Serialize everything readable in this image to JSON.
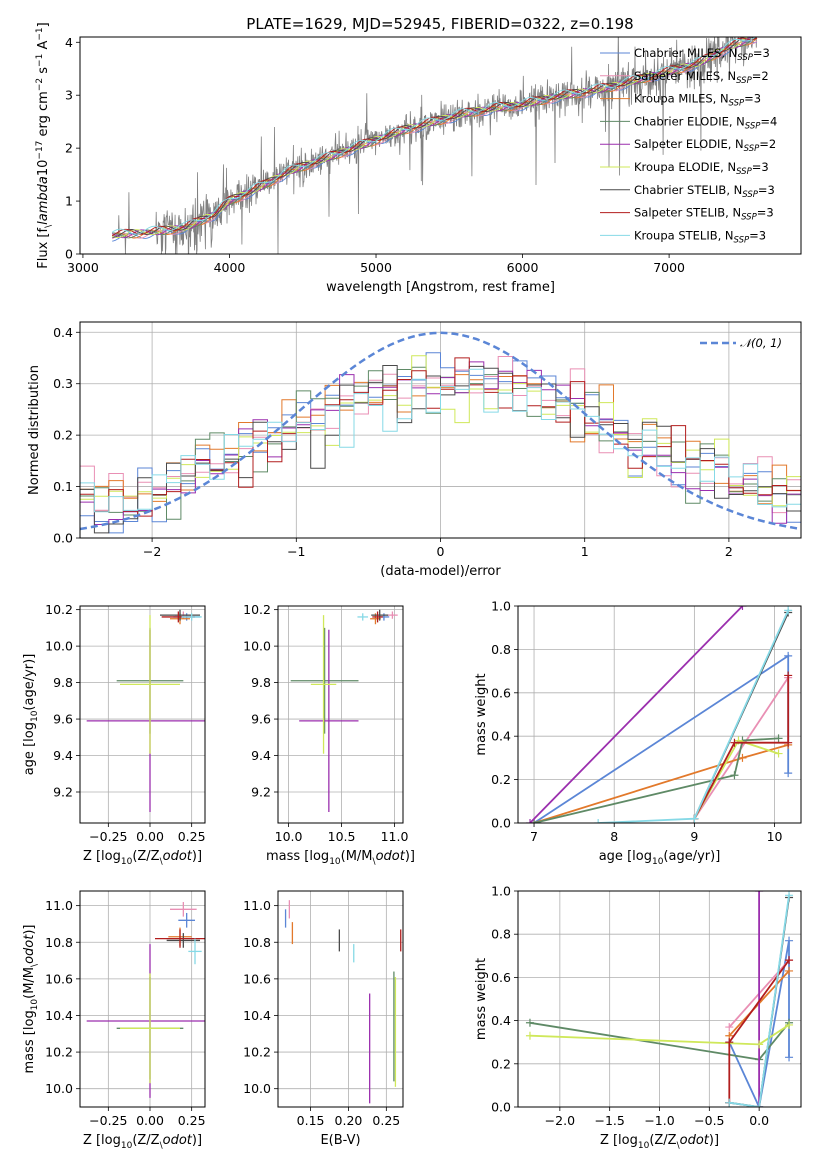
{
  "figure": {
    "title": "PLATE=1629, MJD=52945, FIBERID=0322, z=0.198"
  },
  "colors": {
    "Chabrier MILES": "#5b86d6",
    "Salpeter MILES": "#e98fb4",
    "Kroupa MILES": "#e2792b",
    "Chabrier ELODIE": "#5f8a66",
    "Salpeter ELODIE": "#9b2fae",
    "Kroupa ELODIE": "#cfe85a",
    "Chabrier STELIB": "#4a4a4a",
    "Salpeter STELIB": "#b21e1e",
    "Kroupa STELIB": "#86d9e6",
    "data": "#808080",
    "normal": "#5b86d6"
  },
  "chart_data": [
    {
      "id": "spectrum",
      "type": "line",
      "xlabel": "wavelength [Angstrom, rest frame]",
      "ylabel": "Flux [f$_\\lambda$10$^{-17}$ erg cm$^{-2}$ s$^{-1}$ A$^{-1}$]",
      "ylabel_parts": [
        "Flux [f",
        "λ",
        "10",
        "−17",
        " erg cm",
        "−2",
        " s",
        "−1",
        " A",
        "−1",
        "]"
      ],
      "xlim": [
        2980,
        7900
      ],
      "ylim": [
        0,
        4.1
      ],
      "xticks": [
        3000,
        4000,
        5000,
        6000,
        7000
      ],
      "yticks": [
        0,
        1,
        2,
        3,
        4
      ],
      "grid": false,
      "legend_position": "top-right",
      "legend": [
        {
          "label": "Chabrier MILES, N",
          "sub": "SSP",
          "suffix": "=3"
        },
        {
          "label": "Salpeter MILES, N",
          "sub": "SSP",
          "suffix": "=2"
        },
        {
          "label": "Kroupa MILES, N",
          "sub": "SSP",
          "suffix": "=3"
        },
        {
          "label": "Chabrier ELODIE, N",
          "sub": "SSP",
          "suffix": "=4"
        },
        {
          "label": "Salpeter ELODIE, N",
          "sub": "SSP",
          "suffix": "=2"
        },
        {
          "label": "Kroupa ELODIE, N",
          "sub": "SSP",
          "suffix": "=3"
        },
        {
          "label": "Chabrier STELIB, N",
          "sub": "SSP",
          "suffix": "=3"
        },
        {
          "label": "Salpeter STELIB, N",
          "sub": "SSP",
          "suffix": "=3"
        },
        {
          "label": "Kroupa STELIB, N",
          "sub": "SSP",
          "suffix": "=3"
        }
      ],
      "model_continuum": {
        "x": [
          3200,
          3500,
          3700,
          3900,
          4000,
          4200,
          4400,
          4600,
          4800,
          5000,
          5200,
          5400,
          5600,
          5800,
          6000,
          6200,
          6400,
          6600,
          6800,
          7000,
          7200,
          7400,
          7600
        ],
        "y": [
          0.35,
          0.42,
          0.5,
          0.75,
          1.0,
          1.25,
          1.55,
          1.75,
          1.95,
          2.15,
          2.35,
          2.5,
          2.65,
          2.75,
          2.82,
          2.95,
          3.05,
          3.15,
          3.3,
          3.45,
          3.6,
          3.9,
          4.1
        ]
      },
      "data_spectrum_note": "observed spectrum: noisy grey line following the model continuum"
    },
    {
      "id": "residual-hist",
      "type": "line",
      "xlabel": "(data-model)/error",
      "ylabel": "Normed distribution",
      "xlim": [
        -2.5,
        2.5
      ],
      "ylim": [
        0,
        0.42
      ],
      "xticks": [
        -2,
        -1,
        0,
        1,
        2
      ],
      "yticks": [
        0.0,
        0.1,
        0.2,
        0.3,
        0.4
      ],
      "grid": true,
      "legend_position": "top-right",
      "legend": [
        {
          "label": "𝒩(0, 1)"
        }
      ],
      "normal_curve": {
        "mean": 0,
        "sigma": 1
      },
      "histogram_bin_width": 0.1,
      "histogram_envelope": {
        "x": [
          -2.5,
          -2.0,
          -1.5,
          -1.0,
          -0.5,
          0.0,
          0.5,
          1.0,
          1.5,
          2.0,
          2.5
        ],
        "y": [
          0.05,
          0.09,
          0.15,
          0.22,
          0.27,
          0.3,
          0.29,
          0.24,
          0.17,
          0.12,
          0.07
        ]
      }
    },
    {
      "id": "age-vs-z",
      "type": "scatter",
      "xlabel": "Z [log$_{10}$(Z/Z$_\\odot$)]",
      "ylabel": "age  [log$_{10}$(age/yr)]",
      "xlim": [
        -0.42,
        0.33
      ],
      "ylim": [
        9.03,
        10.22
      ],
      "xticks": [
        -0.25,
        0.0,
        0.25
      ],
      "xtick_labels": [
        "−0.25",
        "0.00",
        "0.25"
      ],
      "yticks": [
        9.2,
        9.4,
        9.6,
        9.8,
        10.0,
        10.2
      ],
      "grid": true,
      "points": [
        {
          "series": "Chabrier MILES",
          "x": 0.22,
          "y": 10.16,
          "xerr": 0.08,
          "yerr": 0.02
        },
        {
          "series": "Salpeter MILES",
          "x": 0.2,
          "y": 10.17,
          "xerr": 0.05,
          "yerr": 0.02
        },
        {
          "series": "Kroupa MILES",
          "x": 0.18,
          "y": 10.15,
          "xerr": 0.06,
          "yerr": 0.03
        },
        {
          "series": "Chabrier ELODIE",
          "x": 0.0,
          "y": 9.81,
          "xerr": 0.2,
          "yerr": 0.29
        },
        {
          "series": "Salpeter ELODIE",
          "x": 0.0,
          "y": 9.59,
          "xerr": 0.38,
          "yerr": 0.5
        },
        {
          "series": "Kroupa ELODIE",
          "x": 0.0,
          "y": 9.79,
          "xerr": 0.18,
          "yerr": 0.38
        },
        {
          "series": "Chabrier STELIB",
          "x": 0.18,
          "y": 10.17,
          "xerr": 0.12,
          "yerr": 0.03
        },
        {
          "series": "Salpeter STELIB",
          "x": 0.17,
          "y": 10.16,
          "xerr": 0.1,
          "yerr": 0.03
        },
        {
          "series": "Kroupa STELIB",
          "x": 0.25,
          "y": 10.16,
          "xerr": 0.06,
          "yerr": 0.02
        }
      ]
    },
    {
      "id": "age-vs-mass",
      "type": "scatter",
      "xlabel": "mass [log$_{10}$(M/M$_\\odot$)]",
      "ylabel": "",
      "xlim": [
        9.9,
        11.08
      ],
      "ylim": [
        9.03,
        10.22
      ],
      "xticks": [
        10.0,
        10.5,
        11.0
      ],
      "yticks": [
        9.2,
        9.4,
        9.6,
        9.8,
        10.0,
        10.2
      ],
      "grid": true,
      "points": [
        {
          "series": "Chabrier MILES",
          "x": 10.9,
          "y": 10.16,
          "xerr": 0.05,
          "yerr": 0.02
        },
        {
          "series": "Salpeter MILES",
          "x": 10.98,
          "y": 10.17,
          "xerr": 0.05,
          "yerr": 0.02
        },
        {
          "series": "Kroupa MILES",
          "x": 10.82,
          "y": 10.15,
          "xerr": 0.05,
          "yerr": 0.03
        },
        {
          "series": "Chabrier ELODIE",
          "x": 10.34,
          "y": 9.81,
          "xerr": 0.32,
          "yerr": 0.29
        },
        {
          "series": "Salpeter ELODIE",
          "x": 10.38,
          "y": 9.59,
          "xerr": 0.28,
          "yerr": 0.5
        },
        {
          "series": "Kroupa ELODIE",
          "x": 10.33,
          "y": 9.79,
          "xerr": 0.12,
          "yerr": 0.38
        },
        {
          "series": "Chabrier STELIB",
          "x": 10.86,
          "y": 10.17,
          "xerr": 0.08,
          "yerr": 0.03
        },
        {
          "series": "Salpeter STELIB",
          "x": 10.84,
          "y": 10.16,
          "xerr": 0.05,
          "yerr": 0.03
        },
        {
          "series": "Kroupa STELIB",
          "x": 10.7,
          "y": 10.16,
          "xerr": 0.05,
          "yerr": 0.02
        }
      ]
    },
    {
      "id": "weight-vs-age",
      "type": "line",
      "xlabel": "age  [log$_{10}$(age/yr)]",
      "ylabel": "mass weight",
      "xlim": [
        6.8,
        10.33
      ],
      "ylim": [
        0,
        1
      ],
      "xticks": [
        7,
        8,
        9,
        10
      ],
      "yticks": [
        0.0,
        0.2,
        0.4,
        0.6,
        0.8,
        1.0
      ],
      "grid": true,
      "series": [
        {
          "name": "Chabrier MILES",
          "x": [
            7.0,
            10.17,
            10.17
          ],
          "y": [
            0.0,
            0.77,
            0.23
          ]
        },
        {
          "name": "Salpeter MILES",
          "x": [
            9.0,
            10.17
          ],
          "y": [
            0.02,
            0.67
          ]
        },
        {
          "name": "Kroupa MILES",
          "x": [
            7.0,
            9.6,
            10.17
          ],
          "y": [
            0.0,
            0.3,
            0.36
          ]
        },
        {
          "name": "Chabrier ELODIE",
          "x": [
            7.0,
            9.5,
            9.6,
            10.05
          ],
          "y": [
            0.0,
            0.22,
            0.38,
            0.39
          ]
        },
        {
          "name": "Salpeter ELODIE",
          "x": [
            6.95,
            9.6
          ],
          "y": [
            0.0,
            1.0
          ]
        },
        {
          "name": "Kroupa ELODIE",
          "x": [
            9.0,
            9.55,
            10.05
          ],
          "y": [
            0.02,
            0.38,
            0.32
          ]
        },
        {
          "name": "Chabrier STELIB",
          "x": [
            9.0,
            10.17
          ],
          "y": [
            0.02,
            0.97
          ]
        },
        {
          "name": "Salpeter STELIB",
          "x": [
            9.0,
            9.5,
            10.17,
            10.17
          ],
          "y": [
            0.02,
            0.37,
            0.37,
            0.68
          ]
        },
        {
          "name": "Kroupa STELIB",
          "x": [
            7.8,
            9.0,
            10.17
          ],
          "y": [
            0.0,
            0.02,
            0.98
          ]
        }
      ]
    },
    {
      "id": "mass-vs-z",
      "type": "scatter",
      "xlabel": "Z [log$_{10}$(Z/Z$_\\odot$)]",
      "ylabel": "mass [log$_{10}$(M/M$_\\odot$)]",
      "xlim": [
        -0.42,
        0.33
      ],
      "ylim": [
        9.9,
        11.08
      ],
      "xticks": [
        -0.25,
        0.0,
        0.25
      ],
      "xtick_labels": [
        "−0.25",
        "0.00",
        "0.25"
      ],
      "yticks": [
        10.0,
        10.2,
        10.4,
        10.6,
        10.8,
        11.0
      ],
      "grid": true,
      "points": [
        {
          "series": "Chabrier MILES",
          "x": 0.22,
          "y": 10.92,
          "xerr": 0.05,
          "yerr": 0.04
        },
        {
          "series": "Salpeter MILES",
          "x": 0.2,
          "y": 10.98,
          "xerr": 0.08,
          "yerr": 0.04
        },
        {
          "series": "Kroupa MILES",
          "x": 0.18,
          "y": 10.83,
          "xerr": 0.07,
          "yerr": 0.05
        },
        {
          "series": "Chabrier ELODIE",
          "x": 0.0,
          "y": 10.33,
          "xerr": 0.2,
          "yerr": 0.28
        },
        {
          "series": "Salpeter ELODIE",
          "x": 0.0,
          "y": 10.37,
          "xerr": 0.38,
          "yerr": 0.42
        },
        {
          "series": "Kroupa ELODIE",
          "x": 0.0,
          "y": 10.33,
          "xerr": 0.18,
          "yerr": 0.3
        },
        {
          "series": "Chabrier STELIB",
          "x": 0.2,
          "y": 10.81,
          "xerr": 0.1,
          "yerr": 0.04
        },
        {
          "series": "Salpeter STELIB",
          "x": 0.18,
          "y": 10.82,
          "xerr": 0.15,
          "yerr": 0.05
        },
        {
          "series": "Kroupa STELIB",
          "x": 0.27,
          "y": 10.75,
          "xerr": 0.04,
          "yerr": 0.07
        }
      ]
    },
    {
      "id": "mass-vs-ebv",
      "type": "scatter",
      "xlabel": "E(B-V)",
      "ylabel": "",
      "xlim": [
        0.107,
        0.272
      ],
      "ylim": [
        9.9,
        11.08
      ],
      "xticks": [
        0.15,
        0.2,
        0.25
      ],
      "xtick_labels": [
        "0.15",
        "0.20",
        "0.25"
      ],
      "yticks": [
        10.0,
        10.2,
        10.4,
        10.6,
        10.8,
        11.0
      ],
      "grid": true,
      "points": [
        {
          "series": "Chabrier MILES",
          "x": 0.117,
          "y": 10.93,
          "xerr": 0,
          "yerr": 0.05
        },
        {
          "series": "Salpeter MILES",
          "x": 0.122,
          "y": 10.98,
          "xerr": 0,
          "yerr": 0.05
        },
        {
          "series": "Kroupa MILES",
          "x": 0.126,
          "y": 10.85,
          "xerr": 0,
          "yerr": 0.06
        },
        {
          "series": "Chabrier ELODIE",
          "x": 0.26,
          "y": 10.34,
          "xerr": 0,
          "yerr": 0.3
        },
        {
          "series": "Salpeter ELODIE",
          "x": 0.228,
          "y": 10.22,
          "xerr": 0,
          "yerr": 0.3
        },
        {
          "series": "Kroupa ELODIE",
          "x": 0.262,
          "y": 10.31,
          "xerr": 0,
          "yerr": 0.3
        },
        {
          "series": "Chabrier STELIB",
          "x": 0.188,
          "y": 10.81,
          "xerr": 0,
          "yerr": 0.06
        },
        {
          "series": "Salpeter STELIB",
          "x": 0.269,
          "y": 10.81,
          "xerr": 0,
          "yerr": 0.06
        },
        {
          "series": "Kroupa STELIB",
          "x": 0.207,
          "y": 10.74,
          "xerr": 0,
          "yerr": 0.05
        }
      ]
    },
    {
      "id": "weight-vs-z",
      "type": "line",
      "xlabel": "Z [log$_{10}$(Z/Z$_\\odot$)]",
      "ylabel": "mass weight",
      "xlim": [
        -2.42,
        0.42
      ],
      "ylim": [
        0,
        1
      ],
      "xticks": [
        -2.0,
        -1.5,
        -1.0,
        -0.5,
        0.0
      ],
      "xtick_labels": [
        "−2.0",
        "−1.5",
        "−1.0",
        "−0.5",
        "0.0"
      ],
      "yticks": [
        0.0,
        0.2,
        0.4,
        0.6,
        0.8,
        1.0
      ],
      "grid": true,
      "series": [
        {
          "name": "Chabrier MILES",
          "x": [
            -0.3,
            0.0,
            0.3,
            0.3
          ],
          "y": [
            0.3,
            0.0,
            0.77,
            0.23
          ]
        },
        {
          "name": "Salpeter MILES",
          "x": [
            -0.3,
            0.3
          ],
          "y": [
            0.37,
            0.68
          ]
        },
        {
          "name": "Kroupa MILES",
          "x": [
            -0.3,
            0.3
          ],
          "y": [
            0.33,
            0.63
          ]
        },
        {
          "name": "Chabrier ELODIE",
          "x": [
            -2.3,
            0.0,
            0.3
          ],
          "y": [
            0.39,
            0.22,
            0.39
          ]
        },
        {
          "name": "Salpeter ELODIE",
          "x": [
            0.0,
            0.0
          ],
          "y": [
            0.0,
            1.0
          ]
        },
        {
          "name": "Kroupa ELODIE",
          "x": [
            -2.3,
            0.0,
            0.3
          ],
          "y": [
            0.33,
            0.29,
            0.38
          ]
        },
        {
          "name": "Chabrier STELIB",
          "x": [
            -0.3,
            0.0,
            0.3
          ],
          "y": [
            0.02,
            0.0,
            0.97
          ]
        },
        {
          "name": "Salpeter STELIB",
          "x": [
            -0.3,
            -0.3,
            0.3
          ],
          "y": [
            0.02,
            0.3,
            0.68
          ]
        },
        {
          "name": "Kroupa STELIB",
          "x": [
            -0.3,
            0.0,
            0.3
          ],
          "y": [
            0.02,
            0.0,
            0.98
          ]
        }
      ]
    }
  ]
}
